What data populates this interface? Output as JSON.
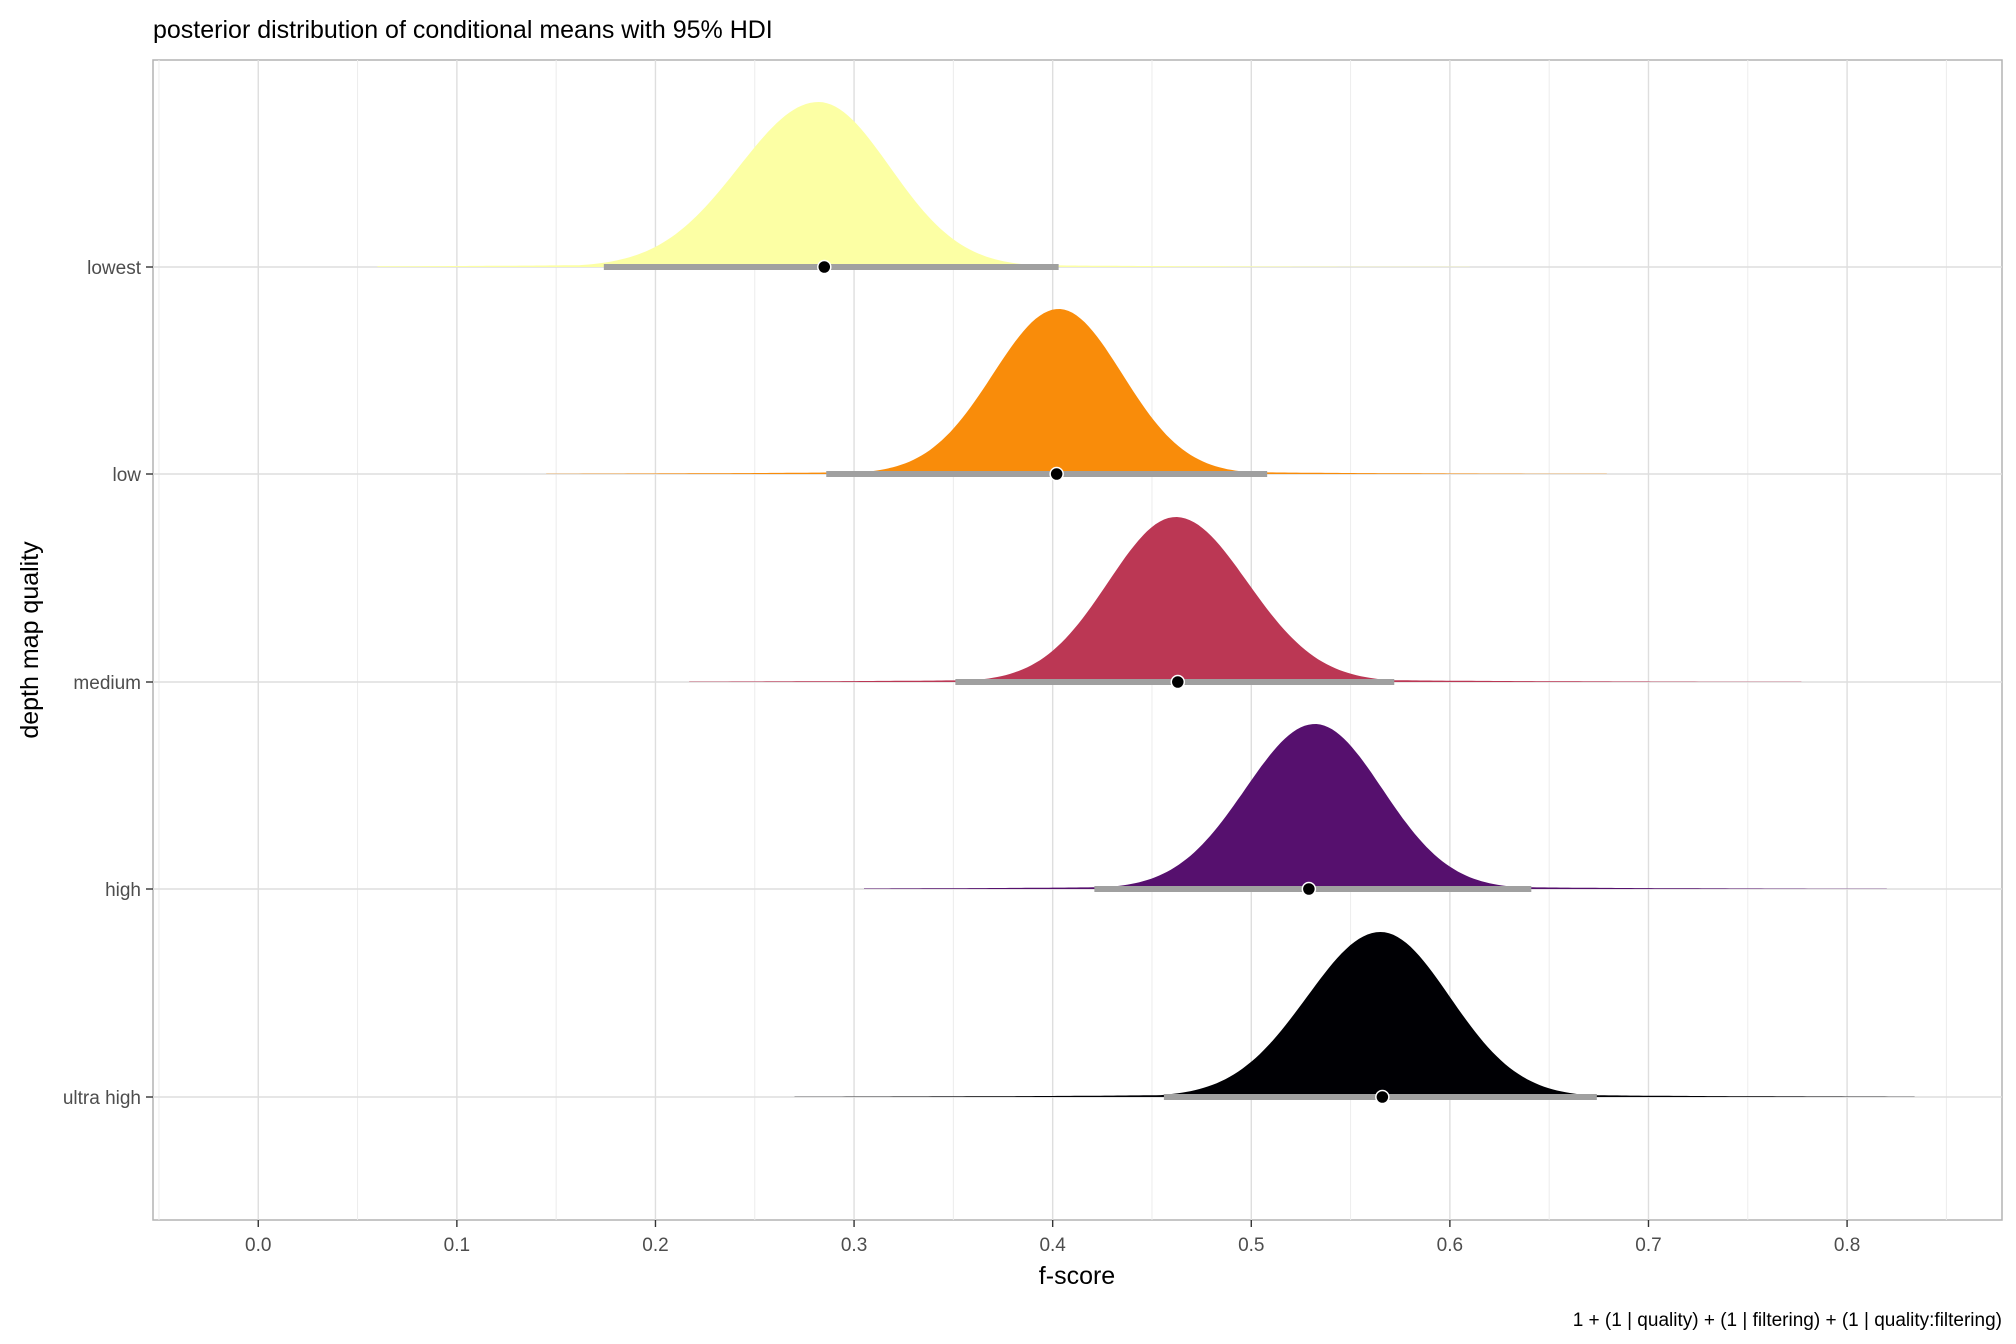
{
  "chart_data": {
    "type": "ridgeline",
    "title": "posterior distribution of conditional means with 95% HDI",
    "xlabel": "f-score",
    "ylabel": "depth map quality",
    "caption": "1 + (1 | quality) + (1 | filtering) + (1 | quality:filtering)",
    "xlim": [
      -0.053,
      0.878
    ],
    "x_ticks": [
      "0.0",
      "0.1",
      "0.2",
      "0.3",
      "0.4",
      "0.5",
      "0.6",
      "0.7",
      "0.8"
    ],
    "grid": true,
    "legend": "none",
    "categories": [
      "lowest",
      "low",
      "medium",
      "high",
      "ultra high"
    ],
    "series": [
      {
        "category": "lowest",
        "color": "#FCFFA4",
        "mode": 0.282,
        "sd_left": 0.04,
        "sd_right": 0.036,
        "x_min": 0.06,
        "x_max": 0.61,
        "point_estimate": 0.285,
        "hdi": [
          0.174,
          0.403
        ]
      },
      {
        "category": "low",
        "color": "#F98C0A",
        "mode": 0.403,
        "sd_left": 0.033,
        "sd_right": 0.032,
        "x_min": 0.145,
        "x_max": 0.679,
        "point_estimate": 0.402,
        "hdi": [
          0.286,
          0.508
        ]
      },
      {
        "category": "medium",
        "color": "#BB3754",
        "mode": 0.462,
        "sd_left": 0.034,
        "sd_right": 0.036,
        "x_min": 0.217,
        "x_max": 0.777,
        "point_estimate": 0.463,
        "hdi": [
          0.351,
          0.572
        ]
      },
      {
        "category": "high",
        "color": "#56106E",
        "mode": 0.532,
        "sd_left": 0.035,
        "sd_right": 0.034,
        "x_min": 0.305,
        "x_max": 0.82,
        "point_estimate": 0.529,
        "hdi": [
          0.421,
          0.641
        ]
      },
      {
        "category": "ultra high",
        "color": "#000004",
        "mode": 0.565,
        "sd_left": 0.037,
        "sd_right": 0.035,
        "x_min": 0.27,
        "x_max": 0.834,
        "point_estimate": 0.566,
        "hdi": [
          0.456,
          0.674
        ]
      }
    ],
    "hdi_color": "#a0a0a0"
  }
}
